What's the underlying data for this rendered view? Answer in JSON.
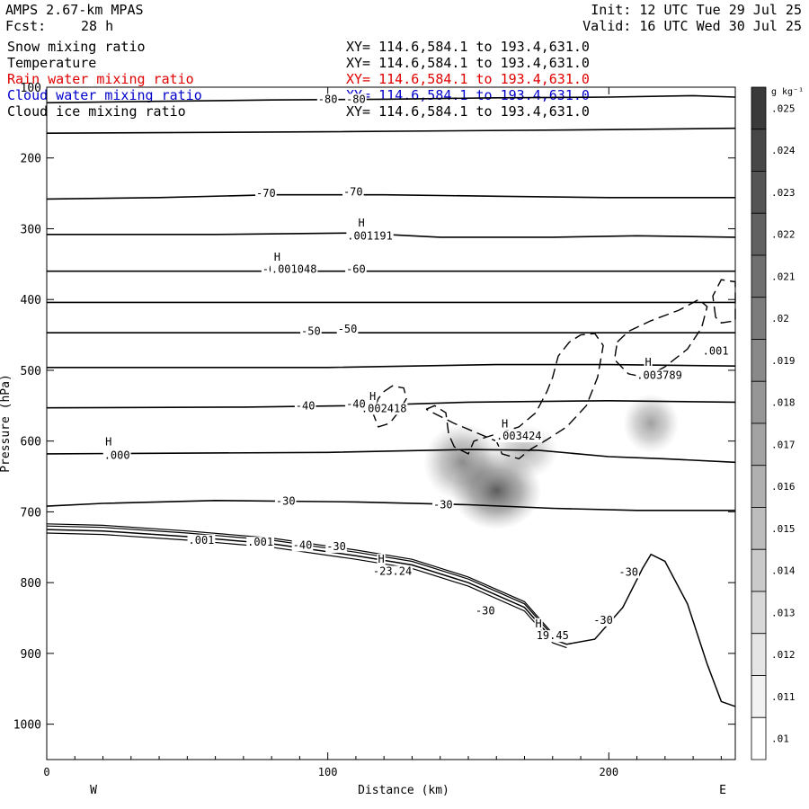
{
  "header": {
    "model": "AMPS 2.67-km MPAS",
    "fcst_label": "Fcst:",
    "fcst_value": "28 h",
    "init": "Init: 12 UTC Tue 29 Jul 25",
    "valid": "Valid: 16 UTC Wed 30 Jul 25"
  },
  "variables": [
    {
      "name": "Snow mixing ratio",
      "range": "XY= 114.6,584.1 to 193.4,631.0",
      "color": "#000000"
    },
    {
      "name": "Temperature",
      "range": "XY= 114.6,584.1 to 193.4,631.0",
      "color": "#000000"
    },
    {
      "name": "Rain water mixing ratio",
      "range": "XY= 114.6,584.1 to 193.4,631.0",
      "color": "#e00000"
    },
    {
      "name": "Cloud water mixing ratio",
      "range": "XY= 114.6,584.1 to 193.4,631.0",
      "color": "#0000cc"
    },
    {
      "name": "Cloud ice mixing ratio",
      "range": "XY= 114.6,584.1 to 193.4,631.0",
      "color": "#000000"
    }
  ],
  "chart_data": {
    "type": "line",
    "xlabel": "Distance (km)",
    "ylabel": "Pressure (hPa)",
    "xlim": [
      0,
      245
    ],
    "ylim": [
      100,
      1050
    ],
    "y_log": false,
    "x_ticks": [
      0,
      100,
      200
    ],
    "y_ticks": [
      100,
      200,
      300,
      400,
      500,
      600,
      700,
      800,
      900,
      1000
    ],
    "direction_left": "W",
    "direction_right": "E",
    "colorbar": {
      "unit": "g kg⁻¹",
      "labels": [
        ".025",
        ".024",
        ".023",
        ".022",
        ".021",
        ".02",
        ".019",
        ".018",
        ".017",
        ".016",
        ".015",
        ".014",
        ".013",
        ".012",
        ".011",
        ".01"
      ],
      "levels": [
        0.025,
        0.024,
        0.023,
        0.022,
        0.021,
        0.02,
        0.019,
        0.018,
        0.017,
        0.016,
        0.015,
        0.014,
        0.013,
        0.012,
        0.011,
        0.01
      ]
    },
    "isotherms": [
      {
        "label": "-80",
        "points": [
          [
            0,
            122
          ],
          [
            40,
            120
          ],
          [
            80,
            118
          ],
          [
            120,
            117
          ],
          [
            160,
            115
          ],
          [
            200,
            114
          ],
          [
            230,
            112
          ],
          [
            245,
            114
          ]
        ]
      },
      {
        "label": "-70",
        "points": [
          [
            0,
            165
          ],
          [
            100,
            163
          ],
          [
            200,
            160
          ],
          [
            245,
            158
          ]
        ]
      },
      {
        "label": "-70",
        "points": [
          [
            0,
            258
          ],
          [
            40,
            256
          ],
          [
            80,
            252
          ],
          [
            120,
            252
          ],
          [
            160,
            254
          ],
          [
            200,
            256
          ],
          [
            245,
            256
          ]
        ]
      },
      {
        "label": "",
        "points": [
          [
            0,
            308
          ],
          [
            60,
            308
          ],
          [
            110,
            306
          ],
          [
            140,
            312
          ],
          [
            180,
            312
          ],
          [
            210,
            310
          ],
          [
            245,
            312
          ]
        ]
      },
      {
        "label": "-60",
        "points": [
          [
            0,
            360
          ],
          [
            245,
            360
          ]
        ]
      },
      {
        "label": "",
        "points": [
          [
            0,
            404
          ],
          [
            245,
            404
          ]
        ]
      },
      {
        "label": "-50",
        "points": [
          [
            0,
            447
          ],
          [
            245,
            447
          ]
        ]
      },
      {
        "label": "",
        "points": [
          [
            0,
            496
          ],
          [
            100,
            496
          ],
          [
            160,
            492
          ],
          [
            200,
            492
          ],
          [
            245,
            494
          ]
        ]
      },
      {
        "label": "-40",
        "points": [
          [
            0,
            553
          ],
          [
            70,
            552
          ],
          [
            110,
            550
          ],
          [
            150,
            545
          ],
          [
            200,
            543
          ],
          [
            245,
            545
          ]
        ]
      },
      {
        "label": "",
        "points": [
          [
            0,
            618
          ],
          [
            100,
            616
          ],
          [
            150,
            612
          ],
          [
            175,
            613
          ],
          [
            200,
            622
          ],
          [
            220,
            625
          ],
          [
            245,
            630
          ]
        ]
      },
      {
        "label": "-30",
        "points": [
          [
            0,
            692
          ],
          [
            20,
            688
          ],
          [
            60,
            684
          ],
          [
            110,
            686
          ],
          [
            150,
            690
          ],
          [
            180,
            695
          ],
          [
            210,
            698
          ],
          [
            245,
            698
          ]
        ]
      }
    ],
    "terrain": [
      [
        0,
        725
      ],
      [
        20,
        727
      ],
      [
        50,
        735
      ],
      [
        80,
        745
      ],
      [
        110,
        762
      ],
      [
        130,
        775
      ],
      [
        150,
        800
      ],
      [
        170,
        835
      ],
      [
        180,
        880
      ],
      [
        185,
        887
      ],
      [
        195,
        880
      ],
      [
        205,
        835
      ],
      [
        212,
        780
      ],
      [
        215,
        760
      ],
      [
        220,
        770
      ],
      [
        228,
        830
      ],
      [
        235,
        915
      ],
      [
        240,
        968
      ],
      [
        245,
        975
      ]
    ],
    "snow_contours": [
      {
        "points": [
          [
            120,
            530
          ],
          [
            123,
            522
          ],
          [
            127,
            525
          ],
          [
            128,
            540
          ],
          [
            125,
            560
          ],
          [
            122,
            575
          ],
          [
            118,
            580
          ],
          [
            116,
            560
          ],
          [
            118,
            540
          ],
          [
            120,
            530
          ]
        ]
      },
      {
        "points": [
          [
            135,
            555
          ],
          [
            138,
            550
          ],
          [
            142,
            560
          ],
          [
            143,
            590
          ],
          [
            145,
            608
          ],
          [
            150,
            618
          ],
          [
            152,
            600
          ],
          [
            160,
            590
          ],
          [
            168,
            580
          ],
          [
            174,
            560
          ],
          [
            178,
            530
          ],
          [
            180,
            510
          ],
          [
            182,
            480
          ],
          [
            186,
            460
          ],
          [
            190,
            450
          ],
          [
            195,
            448
          ],
          [
            198,
            465
          ],
          [
            196,
            510
          ],
          [
            192,
            550
          ],
          [
            185,
            580
          ],
          [
            178,
            598
          ],
          [
            172,
            612
          ],
          [
            168,
            625
          ],
          [
            162,
            618
          ],
          [
            160,
            600
          ],
          [
            145,
            575
          ],
          [
            135,
            555
          ]
        ]
      },
      {
        "points": [
          [
            203,
            460
          ],
          [
            207,
            445
          ],
          [
            215,
            430
          ],
          [
            225,
            415
          ],
          [
            232,
            400
          ],
          [
            235,
            410
          ],
          [
            233,
            440
          ],
          [
            228,
            470
          ],
          [
            220,
            495
          ],
          [
            213,
            510
          ],
          [
            207,
            505
          ],
          [
            202,
            485
          ],
          [
            203,
            460
          ]
        ]
      },
      {
        "points": [
          [
            238,
            425
          ],
          [
            237,
            395
          ],
          [
            240,
            372
          ],
          [
            245,
            375
          ],
          [
            245,
            430
          ],
          [
            240,
            433
          ],
          [
            238,
            425
          ]
        ]
      }
    ],
    "rain_blobs": [
      {
        "x": 160,
        "p": 670,
        "rx": 16,
        "rp": 55,
        "intensity": 0.78
      },
      {
        "x": 148,
        "p": 630,
        "rx": 14,
        "rp": 55,
        "intensity": 0.55
      },
      {
        "x": 170,
        "p": 615,
        "rx": 12,
        "rp": 38,
        "intensity": 0.35
      },
      {
        "x": 215,
        "p": 575,
        "rx": 10,
        "rp": 42,
        "intensity": 0.45
      }
    ],
    "annotations": [
      {
        "text": "-80",
        "x": 100,
        "p": 122
      },
      {
        "text": "-80",
        "x": 110,
        "p": 122
      },
      {
        "text": "-70",
        "x": 78,
        "p": 255
      },
      {
        "text": "-70",
        "x": 109,
        "p": 253
      },
      {
        "text": "H",
        "x": 112,
        "p": 297
      },
      {
        "text": ".001191",
        "x": 115,
        "p": 315
      },
      {
        "text": "H",
        "x": 82,
        "p": 345
      },
      {
        "text": "-6",
        "x": 79,
        "p": 362
      },
      {
        "text": ".001048",
        "x": 88,
        "p": 362
      },
      {
        "text": "-60",
        "x": 110,
        "p": 362
      },
      {
        "text": "-50",
        "x": 94,
        "p": 450
      },
      {
        "text": "-50",
        "x": 107,
        "p": 447
      },
      {
        "text": ".001",
        "x": 238,
        "p": 478
      },
      {
        "text": "H",
        "x": 214,
        "p": 494
      },
      {
        "text": ".003789",
        "x": 218,
        "p": 512
      },
      {
        "text": "H",
        "x": 116,
        "p": 542
      },
      {
        "text": ".002418",
        "x": 120,
        "p": 559
      },
      {
        "text": "-40",
        "x": 92,
        "p": 555
      },
      {
        "text": "-40",
        "x": 110,
        "p": 553
      },
      {
        "text": "H",
        "x": 163,
        "p": 581
      },
      {
        "text": ".003424",
        "x": 168,
        "p": 598
      },
      {
        "text": "H",
        "x": 22,
        "p": 606
      },
      {
        "text": ".000",
        "x": 25,
        "p": 625
      },
      {
        "text": "-30",
        "x": 85,
        "p": 690
      },
      {
        "text": "-30",
        "x": 141,
        "p": 695
      },
      {
        "text": ".001",
        "x": 55,
        "p": 745
      },
      {
        "text": ".001",
        "x": 76,
        "p": 748
      },
      {
        "text": "-40",
        "x": 91,
        "p": 752
      },
      {
        "text": "-30",
        "x": 103,
        "p": 754
      },
      {
        "text": "H",
        "x": 119,
        "p": 772
      },
      {
        "text": "-23.24",
        "x": 123,
        "p": 789
      },
      {
        "text": "-30",
        "x": 156,
        "p": 845
      },
      {
        "text": "H",
        "x": 175,
        "p": 863
      },
      {
        "text": "19.45",
        "x": 180,
        "p": 880
      },
      {
        "text": "-30",
        "x": 207,
        "p": 790
      },
      {
        "text": "-30",
        "x": 198,
        "p": 858
      }
    ],
    "colors": {
      "contour": "#000000",
      "shade_max": "#3a3a3a",
      "shade_min": "#ffffff"
    }
  }
}
